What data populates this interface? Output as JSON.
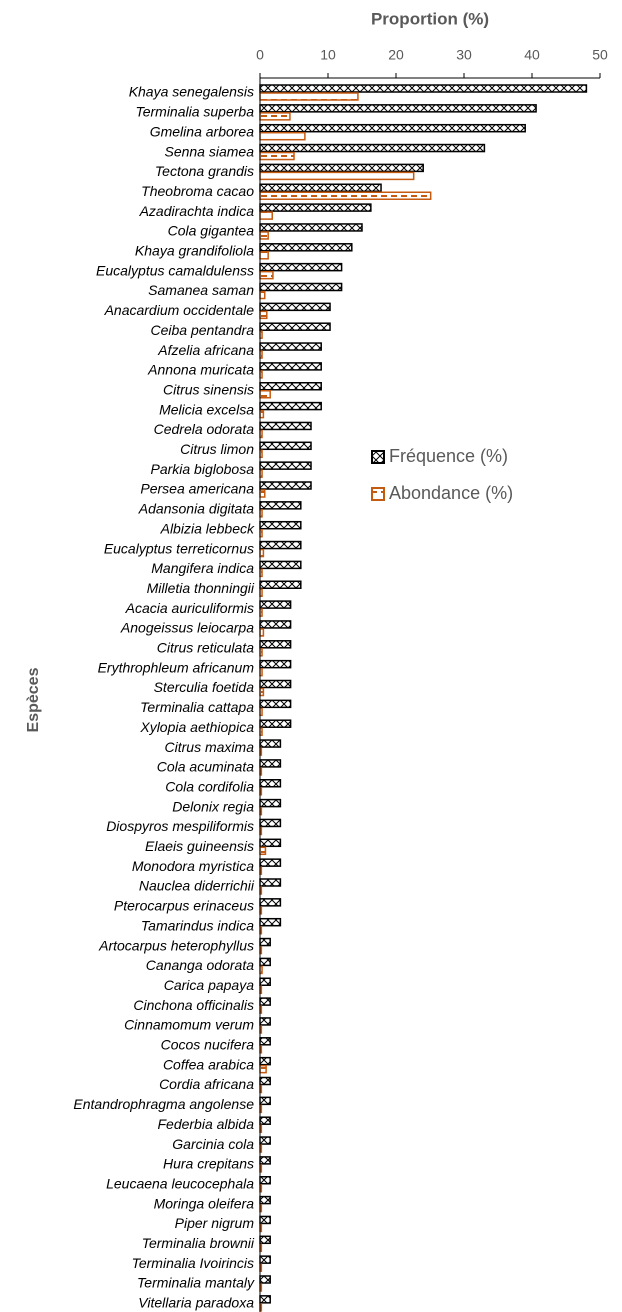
{
  "chart_data": {
    "type": "barh",
    "x_label": "Proportion (%)",
    "y_label": "Espèces",
    "xlim": [
      0,
      50
    ],
    "xticks": [
      0,
      10,
      20,
      30,
      40,
      50
    ],
    "legend": "right",
    "categories": [
      "Khaya senegalensis",
      "Terminalia superba",
      "Gmelina arborea",
      "Senna siamea",
      "Tectona grandis",
      "Theobroma cacao",
      "Azadirachta indica",
      "Cola gigantea",
      "Khaya grandifoliola",
      "Eucalyptus camaldulenss",
      "Samanea saman",
      "Anacardium occidentale",
      "Ceiba pentandra",
      "Afzelia africana",
      "Annona muricata",
      "Citrus sinensis",
      "Melicia excelsa",
      "Cedrela odorata",
      "Citrus limon",
      "Parkia biglobosa",
      "Persea americana",
      "Adansonia digitata",
      "Albizia lebbeck",
      "Eucalyptus terreticornus",
      "Mangifera indica",
      "Milletia thonningii",
      "Acacia auriculiformis",
      "Anogeissus leiocarpa",
      "Citrus reticulata",
      "Erythrophleum africanum",
      "Sterculia foetida",
      "Terminalia cattapa",
      "Xylopia aethiopica",
      "Citrus maxima",
      "Cola acuminata",
      "Cola cordifolia",
      "Delonix regia",
      "Diospyros mespiliformis",
      "Elaeis guineensis",
      "Monodora myristica",
      "Nauclea diderrichii",
      "Pterocarpus erinaceus",
      "Tamarindus indica",
      "Artocarpus heterophyllus",
      "Cananga odorata",
      "Carica papaya",
      "Cinchona officinalis",
      "Cinnamomum verum",
      "Cocos nucifera",
      "Coffea arabica",
      "Cordia africana",
      "Entandrophragma angolense",
      "Federbia albida",
      "Garcinia cola",
      "Hura crepitans",
      "Leucaena leucocephala",
      "Moringa oleifera",
      "Piper nigrum",
      "Terminalia brownii",
      "Terminalia Ivoirincis",
      "Terminalia mantaly",
      "Vitellaria paradoxa"
    ],
    "series": [
      {
        "name": "Fréquence (%)",
        "color": "#000000",
        "values": [
          48,
          40.6,
          39,
          33,
          24,
          17.8,
          16.3,
          15,
          13.5,
          12,
          12,
          10.3,
          10.3,
          9,
          9,
          9,
          9,
          7.5,
          7.5,
          7.5,
          7.5,
          6,
          6,
          6,
          6,
          6,
          4.5,
          4.5,
          4.5,
          4.5,
          4.5,
          4.5,
          4.5,
          3,
          3,
          3,
          3,
          3,
          3,
          3,
          3,
          3,
          3,
          1.5,
          1.5,
          1.5,
          1.5,
          1.5,
          1.5,
          1.5,
          1.5,
          1.5,
          1.5,
          1.5,
          1.5,
          1.5,
          1.5,
          1.5,
          1.5,
          1.5,
          1.5,
          1.5
        ]
      },
      {
        "name": "Abondance (%)",
        "color": "#c55a11",
        "values": [
          14.4,
          4.4,
          6.6,
          5,
          22.6,
          25.1,
          1.8,
          1.2,
          1.2,
          1.9,
          0.7,
          1,
          0.3,
          0.3,
          0.3,
          1.5,
          0.5,
          0.3,
          0.3,
          0.3,
          0.7,
          0.3,
          0.3,
          0.5,
          0.3,
          0.3,
          0.3,
          0.5,
          0.3,
          0.3,
          0.5,
          0.3,
          0.3,
          0.2,
          0.2,
          0.2,
          0.2,
          0.2,
          0.8,
          0.2,
          0.2,
          0.2,
          0.2,
          0.2,
          0.3,
          0.2,
          0.2,
          0.2,
          0.2,
          0.9,
          0.2,
          0.2,
          0.2,
          0.2,
          0.2,
          0.2,
          0.2,
          0.2,
          0.2,
          0.2,
          0.2,
          0.2
        ]
      }
    ]
  }
}
